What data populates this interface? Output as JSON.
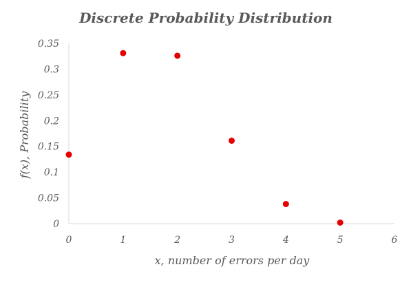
{
  "chart_data": {
    "type": "scatter",
    "title": "Discrete Probability Distribution",
    "xlabel": "x, number of errors per day",
    "ylabel": "f(x), Probability",
    "xlim": [
      0,
      6
    ],
    "ylim": [
      0,
      0.35
    ],
    "x_ticks": [
      "0",
      "1",
      "2",
      "3",
      "4",
      "5",
      "6"
    ],
    "y_ticks": [
      "0",
      "0.05",
      "0.1",
      "0.15",
      "0.2",
      "0.25",
      "0.3",
      "0.35"
    ],
    "grid": false,
    "legend": "none",
    "marker_color": "#e60000",
    "series": [
      {
        "x": [
          0,
          1,
          2,
          3,
          4,
          5
        ],
        "y": [
          0.134,
          0.331,
          0.326,
          0.161,
          0.038,
          0.002
        ]
      }
    ]
  }
}
